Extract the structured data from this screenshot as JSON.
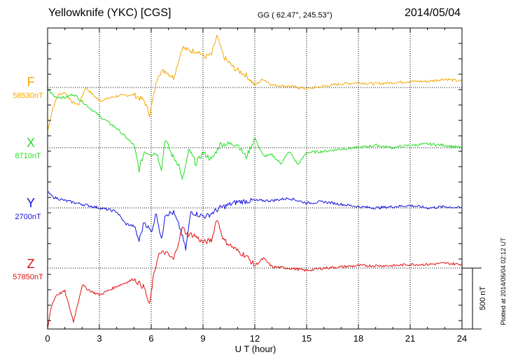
{
  "header": {
    "station": "Yellowknife (YKC)  [CGS]",
    "coords": "GG ( 62.47°, 245.53°)",
    "date": "2014/05/04"
  },
  "footer": {
    "plotted": "Plotted at 2014/06/04 02:12 UT"
  },
  "chart_data": {
    "type": "line",
    "title": "Yellowknife (YKC)  [CGS]",
    "xlabel": "U T (hour)",
    "xlim": [
      0,
      24
    ],
    "x_ticks": [
      0,
      3,
      6,
      9,
      12,
      15,
      18,
      21,
      24
    ],
    "scale_bar": {
      "label": "500 nT",
      "value_nT": 500
    },
    "series": [
      {
        "name": "F",
        "baseline_label": "58530nT",
        "baseline_nT": 58530,
        "color": "#f5a800",
        "hours": [
          0,
          0.3,
          0.6,
          1,
          1.4,
          1.8,
          2.2,
          3,
          4,
          5,
          5.6,
          5.9,
          6.1,
          6.4,
          6.8,
          7.3,
          7.8,
          8.2,
          8.7,
          9.1,
          9.5,
          9.8,
          10.2,
          10.8,
          11.5,
          12,
          12.5,
          13,
          14,
          15,
          16,
          17,
          18,
          19,
          20,
          21,
          22,
          23,
          24
        ],
        "values": [
          -360,
          -170,
          -60,
          -40,
          -120,
          -140,
          0,
          -110,
          -70,
          -60,
          -110,
          -220,
          -100,
          110,
          140,
          80,
          330,
          300,
          300,
          250,
          270,
          420,
          250,
          160,
          100,
          20,
          70,
          20,
          10,
          -10,
          10,
          30,
          40,
          30,
          40,
          50,
          50,
          70,
          50
        ]
      },
      {
        "name": "X",
        "baseline_label": "8710nT",
        "baseline_nT": 8710,
        "color": "#22dd22",
        "hours": [
          0,
          0.4,
          1,
          1.5,
          2,
          3,
          4,
          5,
          5.3,
          5.6,
          6,
          6.3,
          6.6,
          6.8,
          7.2,
          7.6,
          7.8,
          8.2,
          8.6,
          9,
          9.5,
          10,
          11,
          11.5,
          12,
          12.5,
          13,
          13.5,
          14,
          14.5,
          15,
          16,
          17,
          18,
          19,
          20,
          21,
          22,
          23,
          24
        ],
        "values": [
          480,
          420,
          410,
          440,
          380,
          260,
          160,
          20,
          -180,
          -30,
          -50,
          -40,
          -170,
          70,
          -60,
          -140,
          -270,
          -20,
          -130,
          -40,
          -100,
          30,
          30,
          -80,
          80,
          -70,
          -60,
          -130,
          -30,
          -140,
          -40,
          -30,
          -10,
          0,
          20,
          0,
          20,
          30,
          20,
          0
        ]
      },
      {
        "name": "Y",
        "baseline_label": "2700nT",
        "baseline_nT": 2700,
        "color": "#1010e0",
        "hours": [
          0,
          0.3,
          1,
          2,
          3,
          4,
          4.5,
          5,
          5.3,
          5.6,
          6,
          6.3,
          6.6,
          6.8,
          7.3,
          7.7,
          8,
          8.3,
          8.8,
          9.2,
          10,
          11,
          12,
          13,
          14,
          15,
          16,
          17,
          18,
          19,
          20,
          21,
          22,
          23,
          24
        ],
        "values": [
          130,
          90,
          60,
          30,
          0,
          -30,
          -130,
          -150,
          -270,
          -110,
          -200,
          -40,
          -270,
          -50,
          -40,
          -180,
          -340,
          -30,
          -60,
          -70,
          0,
          50,
          60,
          60,
          80,
          40,
          50,
          30,
          10,
          0,
          10,
          20,
          0,
          10,
          0
        ]
      },
      {
        "name": "Z",
        "baseline_label": "57850nT",
        "baseline_nT": 57850,
        "color": "#e01010",
        "hours": [
          0,
          0.2,
          0.5,
          1,
          1.5,
          2,
          2.5,
          3,
          4,
          5,
          5.6,
          5.9,
          6.1,
          6.4,
          6.8,
          7.3,
          7.8,
          8.1,
          8.5,
          9,
          9.5,
          9.8,
          10.2,
          11,
          11.5,
          12,
          12.5,
          13,
          14,
          15,
          16,
          17,
          18,
          19,
          20,
          21,
          22,
          23,
          24
        ],
        "values": [
          -500,
          -320,
          -220,
          -190,
          -440,
          -140,
          -190,
          -220,
          -150,
          -90,
          -160,
          -310,
          -100,
          110,
          130,
          70,
          330,
          280,
          270,
          210,
          230,
          410,
          230,
          140,
          100,
          20,
          80,
          10,
          0,
          -20,
          0,
          10,
          20,
          20,
          20,
          30,
          30,
          40,
          30
        ]
      }
    ]
  }
}
